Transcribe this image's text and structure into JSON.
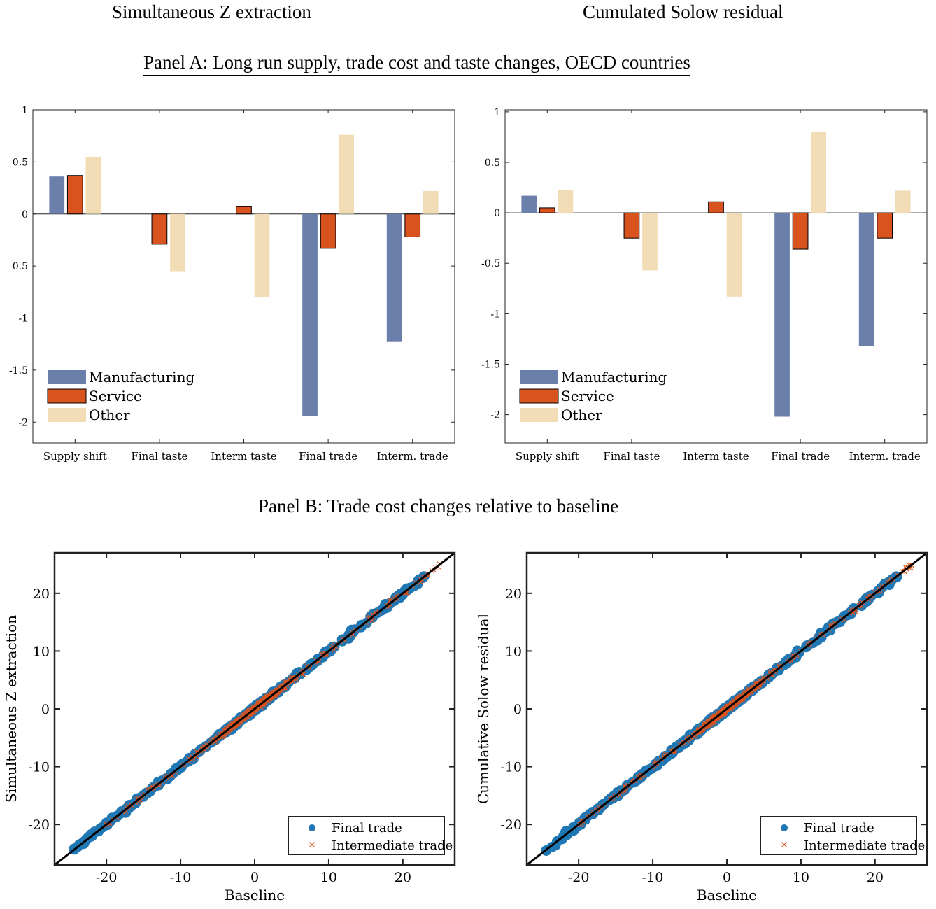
{
  "titles": {
    "left_column": "Simultaneous Z extraction",
    "right_column": "Cumulated Solow residual",
    "panel_a": "Panel A: Long run supply, trade cost and taste changes, OECD countries",
    "panel_b": "Panel B: Trade cost changes relative to baseline"
  },
  "colors": {
    "manufacturing": "#6a7faa",
    "service": "#d9531e",
    "other": "#f2dcb5",
    "final_trade_marker": "#1f77b4",
    "intermediate_trade_marker": "#d9531e"
  },
  "chart_data": [
    {
      "type": "bar",
      "title": "",
      "categories": [
        "Supply shift",
        "Final taste",
        "Interm taste",
        "Final trade",
        "Interm. trade"
      ],
      "series": [
        {
          "name": "Manufacturing",
          "values": [
            0.36,
            0.0,
            0.0,
            -1.94,
            -1.23
          ]
        },
        {
          "name": "Service",
          "values": [
            0.37,
            -0.29,
            0.07,
            -0.33,
            -0.22
          ]
        },
        {
          "name": "Other",
          "values": [
            0.55,
            -0.55,
            -0.8,
            0.76,
            0.22
          ]
        }
      ],
      "yticks": [
        "1",
        "0.5",
        "0",
        "-0.5",
        "-1",
        "-1.5",
        "-2"
      ],
      "ylim": [
        -2.2,
        1.0
      ],
      "legend": "bottom-left"
    },
    {
      "type": "bar",
      "title": "",
      "categories": [
        "Supply shift",
        "Final taste",
        "Interm taste",
        "Final trade",
        "Interm. trade"
      ],
      "series": [
        {
          "name": "Manufacturing",
          "values": [
            0.17,
            0.0,
            0.0,
            -2.02,
            -1.32
          ]
        },
        {
          "name": "Service",
          "values": [
            0.05,
            -0.25,
            0.11,
            -0.36,
            -0.25
          ]
        },
        {
          "name": "Other",
          "values": [
            0.23,
            -0.57,
            -0.83,
            0.8,
            0.22
          ]
        }
      ],
      "yticks": [
        "1",
        "0.5",
        "0",
        "-0.5",
        "-1",
        "-1.5",
        "-2"
      ],
      "ylim": [
        -2.28,
        1.02
      ],
      "legend": "bottom-left"
    },
    {
      "type": "scatter",
      "xlabel": "Baseline",
      "ylabel": "Simultaneous Z extraction",
      "xlim": [
        -27,
        27
      ],
      "ylim": [
        -27,
        27
      ],
      "xticks": [
        "-20",
        "-10",
        "0",
        "10",
        "20"
      ],
      "yticks": [
        "20",
        "10",
        "0",
        "-10",
        "-20"
      ],
      "series": [
        {
          "name": "Final trade",
          "marker": "circle",
          "approx_relation": "y = x",
          "x_range": [
            -24.5,
            23
          ]
        },
        {
          "name": "Intermediate trade",
          "marker": "x",
          "approx_relation": "y = x",
          "x_range": [
            -20,
            25
          ]
        }
      ],
      "reference_line": "45-degree",
      "legend": "bottom-right"
    },
    {
      "type": "scatter",
      "xlabel": "Baseline",
      "ylabel": "Cumulative Solow residual",
      "xlim": [
        -27,
        27
      ],
      "ylim": [
        -27,
        27
      ],
      "xticks": [
        "-20",
        "-10",
        "0",
        "10",
        "20"
      ],
      "yticks": [
        "20",
        "10",
        "0",
        "-10",
        "-20"
      ],
      "series": [
        {
          "name": "Final trade",
          "marker": "circle",
          "approx_relation": "y = x",
          "x_range": [
            -24.5,
            23
          ]
        },
        {
          "name": "Intermediate trade",
          "marker": "x",
          "approx_relation": "y = x",
          "x_range": [
            -20,
            25
          ]
        }
      ],
      "reference_line": "45-degree",
      "legend": "bottom-right"
    }
  ]
}
